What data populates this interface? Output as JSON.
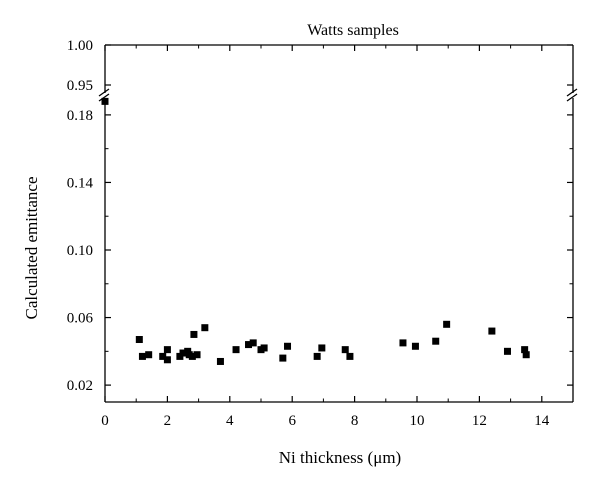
{
  "chart_data": {
    "type": "scatter",
    "title": "Watts samples",
    "xlabel": "Ni thickness (μm)",
    "ylabel": "Calculated emittance",
    "xlim": [
      0,
      15
    ],
    "ylim_lower": [
      0.01,
      0.19
    ],
    "ylim_upper": [
      0.94,
      1.0
    ],
    "broken_y_axis": true,
    "grid": false,
    "legend": "none",
    "marker": "square",
    "marker_color": "#000000",
    "x_ticks": [
      "0",
      "2",
      "4",
      "6",
      "8",
      "10",
      "12",
      "14"
    ],
    "y_ticks_lower": [
      "0.02",
      "0.06",
      "0.10",
      "0.14",
      "0.18"
    ],
    "y_ticks_upper": [
      "0.95",
      "1.00"
    ],
    "series": [
      {
        "points": [
          [
            0.0,
            0.188
          ],
          [
            1.1,
            0.047
          ],
          [
            1.2,
            0.037
          ],
          [
            1.4,
            0.038
          ],
          [
            1.85,
            0.037
          ],
          [
            2.0,
            0.035
          ],
          [
            2.0,
            0.041
          ],
          [
            2.4,
            0.037
          ],
          [
            2.5,
            0.039
          ],
          [
            2.65,
            0.04
          ],
          [
            2.7,
            0.038
          ],
          [
            2.8,
            0.037
          ],
          [
            2.85,
            0.05
          ],
          [
            2.95,
            0.038
          ],
          [
            3.2,
            0.054
          ],
          [
            3.7,
            0.034
          ],
          [
            4.2,
            0.041
          ],
          [
            4.6,
            0.044
          ],
          [
            4.75,
            0.045
          ],
          [
            5.0,
            0.041
          ],
          [
            5.1,
            0.042
          ],
          [
            5.7,
            0.036
          ],
          [
            5.85,
            0.043
          ],
          [
            6.8,
            0.037
          ],
          [
            6.95,
            0.042
          ],
          [
            7.7,
            0.041
          ],
          [
            7.85,
            0.037
          ],
          [
            9.55,
            0.045
          ],
          [
            9.95,
            0.043
          ],
          [
            10.6,
            0.046
          ],
          [
            10.95,
            0.056
          ],
          [
            12.4,
            0.052
          ],
          [
            12.9,
            0.04
          ],
          [
            13.45,
            0.041
          ],
          [
            13.5,
            0.038
          ]
        ]
      }
    ]
  }
}
